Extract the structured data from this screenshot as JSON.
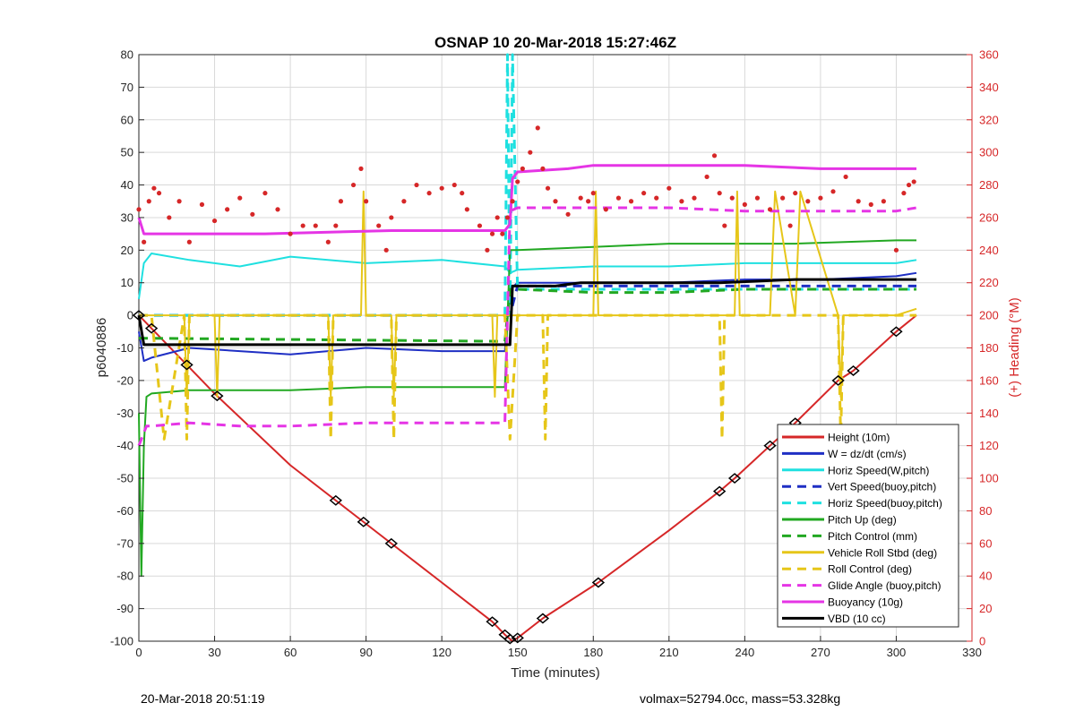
{
  "colors": {
    "left_axis": "#262626",
    "right_axis": "#d62728",
    "grid": "#d9d9d9"
  },
  "footer": {
    "left": "20-Mar-2018 20:51:19",
    "right": "volmax=52794.0cc, mass=53.328kg"
  },
  "chart_data": {
    "type": "line",
    "title": "OSNAP 10 20-Mar-2018 15:27:46Z",
    "xlabel": "Time (minutes)",
    "ylabel": "p6040886",
    "y2label": "(+) Heading (°M)",
    "xlim": [
      0,
      330
    ],
    "ylim": [
      -100,
      80
    ],
    "y2lim": [
      0,
      360
    ],
    "xticks": [
      "0",
      "30",
      "60",
      "90",
      "120",
      "150",
      "180",
      "210",
      "240",
      "270",
      "300",
      "330"
    ],
    "yticks": [
      "80",
      "70",
      "60",
      "50",
      "40",
      "30",
      "20",
      "10",
      "0",
      "-10",
      "-20",
      "-30",
      "-40",
      "-50",
      "-60",
      "-70",
      "-80",
      "-90",
      "-100"
    ],
    "y2ticks": [
      "360",
      "340",
      "320",
      "300",
      "280",
      "260",
      "240",
      "220",
      "200",
      "180",
      "160",
      "140",
      "120",
      "100",
      "80",
      "60",
      "40",
      "20",
      "0"
    ],
    "grid": true,
    "legend_position": "bottom-right",
    "series": [
      {
        "name": "Height (10m)",
        "color": "#d62728",
        "style": "solid",
        "width": 2,
        "x": [
          0,
          30,
          60,
          90,
          120,
          140,
          145,
          148,
          150,
          160,
          182,
          210,
          230,
          236,
          250,
          260,
          277,
          283,
          300,
          308
        ],
        "y": [
          0,
          -24,
          -46,
          -64,
          -82,
          -94,
          -98,
          -100,
          -99,
          -93,
          -82,
          -66,
          -54,
          -50,
          -40,
          -33,
          -20,
          -17,
          -5,
          0
        ]
      },
      {
        "name": "W = dz/dt (cm/s)",
        "color": "#1f2fc4",
        "style": "solid",
        "width": 2,
        "x": [
          0,
          2,
          5,
          20,
          40,
          60,
          90,
          120,
          145,
          147,
          150,
          180,
          210,
          240,
          270,
          300,
          308
        ],
        "y": [
          -5,
          -14,
          -13,
          -10,
          -11,
          -12,
          -10,
          -11,
          -11,
          8,
          10,
          10,
          10,
          11,
          11,
          12,
          13
        ]
      },
      {
        "name": "Horiz Speed(W,pitch)",
        "color": "#1fe0e0",
        "style": "solid",
        "width": 2,
        "x": [
          0,
          2,
          5,
          20,
          40,
          60,
          90,
          120,
          145,
          147,
          150,
          180,
          210,
          240,
          270,
          300,
          308
        ],
        "y": [
          5,
          16,
          19,
          17,
          15,
          18,
          16,
          17,
          15,
          13,
          14,
          15,
          15,
          16,
          16,
          16,
          17
        ]
      },
      {
        "name": "Vert Speed(buoy,pitch)",
        "color": "#1f2fc4",
        "style": "dash",
        "width": 3,
        "x": [
          0,
          145,
          147,
          150,
          180,
          210,
          240,
          270,
          300,
          308
        ],
        "y": [
          0,
          0,
          0,
          9,
          9,
          9,
          9,
          9,
          9,
          9
        ]
      },
      {
        "name": "Horiz Speed(buoy,pitch)",
        "color": "#1fe0e0",
        "style": "dash",
        "width": 3,
        "x": [
          0,
          145,
          146,
          147,
          148,
          150,
          180,
          210,
          240,
          270,
          300,
          308
        ],
        "y": [
          0,
          0,
          80,
          0,
          80,
          8,
          8,
          8,
          8,
          8,
          8,
          8
        ]
      },
      {
        "name": "Pitch Up (deg)",
        "color": "#22a822",
        "style": "solid",
        "width": 2,
        "x": [
          0,
          1,
          2,
          3,
          5,
          20,
          40,
          60,
          90,
          120,
          145,
          147,
          150,
          180,
          210,
          230,
          260,
          300,
          308
        ],
        "y": [
          -30,
          -80,
          -40,
          -25,
          -24,
          -23,
          -23,
          -23,
          -22,
          -22,
          -22,
          20,
          20,
          21,
          22,
          22,
          22,
          23,
          23
        ]
      },
      {
        "name": "Pitch Control (mm)",
        "color": "#22a822",
        "style": "dash",
        "width": 3,
        "x": [
          0,
          145,
          147,
          150,
          180,
          210,
          240,
          270,
          300,
          308
        ],
        "y": [
          -7,
          -8,
          8,
          8,
          7,
          7,
          8,
          8,
          8,
          8
        ]
      },
      {
        "name": "Vehicle Roll Stbd (deg)",
        "color": "#e6c619",
        "style": "solid",
        "width": 2,
        "x": [
          0,
          18,
          19,
          20,
          30,
          31,
          32,
          75,
          76,
          77,
          88,
          89,
          90,
          100,
          101,
          102,
          140,
          141,
          142,
          147,
          150,
          180,
          181,
          182,
          230,
          236,
          237,
          238,
          250,
          252,
          260,
          262,
          277,
          278,
          279,
          300,
          308
        ],
        "y": [
          0,
          0,
          -25,
          0,
          0,
          -25,
          0,
          0,
          -25,
          0,
          0,
          38,
          0,
          0,
          -25,
          0,
          0,
          -25,
          0,
          0,
          0,
          0,
          38,
          0,
          0,
          0,
          38,
          0,
          0,
          38,
          0,
          38,
          0,
          -25,
          0,
          0,
          2
        ]
      },
      {
        "name": "Roll Control (deg)",
        "color": "#e6c619",
        "style": "dash",
        "width": 3,
        "x": [
          0,
          5,
          10,
          18,
          19,
          20,
          75,
          76,
          77,
          100,
          101,
          102,
          145,
          147,
          150,
          160,
          161,
          162,
          230,
          231,
          232,
          277,
          278,
          279,
          300,
          308
        ],
        "y": [
          0,
          0,
          -38,
          0,
          -38,
          0,
          0,
          -38,
          0,
          0,
          -38,
          0,
          0,
          -38,
          0,
          0,
          -38,
          0,
          0,
          -38,
          0,
          0,
          -38,
          0,
          0,
          0
        ]
      },
      {
        "name": "Glide Angle (buoy,pitch)",
        "color": "#e535e5",
        "style": "dash",
        "width": 3,
        "x": [
          0,
          3,
          5,
          20,
          40,
          60,
          90,
          120,
          145,
          147,
          150,
          180,
          210,
          240,
          270,
          300,
          308
        ],
        "y": [
          -40,
          -34,
          -34,
          -33,
          -34,
          -34,
          -33,
          -33,
          -33,
          32,
          33,
          33,
          33,
          32,
          32,
          32,
          33
        ]
      },
      {
        "name": "Buoyancy (10g)",
        "color": "#e535e5",
        "style": "solid",
        "width": 3,
        "x": [
          0,
          2,
          5,
          50,
          100,
          145,
          147,
          148,
          150,
          170,
          180,
          230,
          240,
          270,
          300,
          308
        ],
        "y": [
          30,
          25,
          25,
          25,
          26,
          26,
          28,
          42,
          44,
          45,
          46,
          46,
          46,
          45,
          45,
          45
        ]
      },
      {
        "name": "VBD (10 cc)",
        "color": "#000000",
        "style": "solid",
        "width": 3,
        "x": [
          0,
          2,
          145,
          147,
          148,
          150,
          165,
          175,
          200,
          230,
          260,
          300,
          308
        ],
        "y": [
          0,
          -9,
          -9,
          -9,
          9,
          9,
          9,
          10,
          10,
          10,
          11,
          11,
          11
        ]
      },
      {
        "name": "Heading",
        "color": "#d62728",
        "style": "dots",
        "axis": "right",
        "width": 3,
        "x": [
          0,
          2,
          4,
          6,
          8,
          12,
          16,
          20,
          25,
          30,
          35,
          40,
          45,
          50,
          55,
          60,
          65,
          70,
          75,
          78,
          80,
          85,
          88,
          90,
          95,
          98,
          100,
          105,
          110,
          115,
          120,
          125,
          128,
          130,
          135,
          138,
          140,
          142,
          144,
          146,
          148,
          150,
          152,
          155,
          158,
          160,
          162,
          165,
          170,
          175,
          178,
          180,
          185,
          190,
          195,
          200,
          205,
          210,
          215,
          220,
          225,
          228,
          230,
          232,
          235,
          240,
          245,
          250,
          255,
          258,
          260,
          265,
          270,
          275,
          280,
          285,
          290,
          295,
          300,
          303,
          305,
          307
        ],
        "y": [
          265,
          245,
          270,
          278,
          275,
          260,
          270,
          245,
          268,
          258,
          265,
          272,
          262,
          275,
          265,
          250,
          255,
          255,
          245,
          255,
          270,
          280,
          290,
          270,
          255,
          240,
          260,
          270,
          280,
          275,
          278,
          280,
          275,
          265,
          255,
          240,
          250,
          260,
          250,
          260,
          270,
          282,
          290,
          300,
          315,
          290,
          278,
          270,
          262,
          272,
          270,
          275,
          265,
          272,
          270,
          275,
          272,
          278,
          270,
          272,
          285,
          298,
          275,
          255,
          272,
          268,
          272,
          265,
          272,
          255,
          275,
          270,
          272,
          276,
          285,
          270,
          268,
          270,
          240,
          275,
          280,
          282
        ]
      }
    ]
  }
}
